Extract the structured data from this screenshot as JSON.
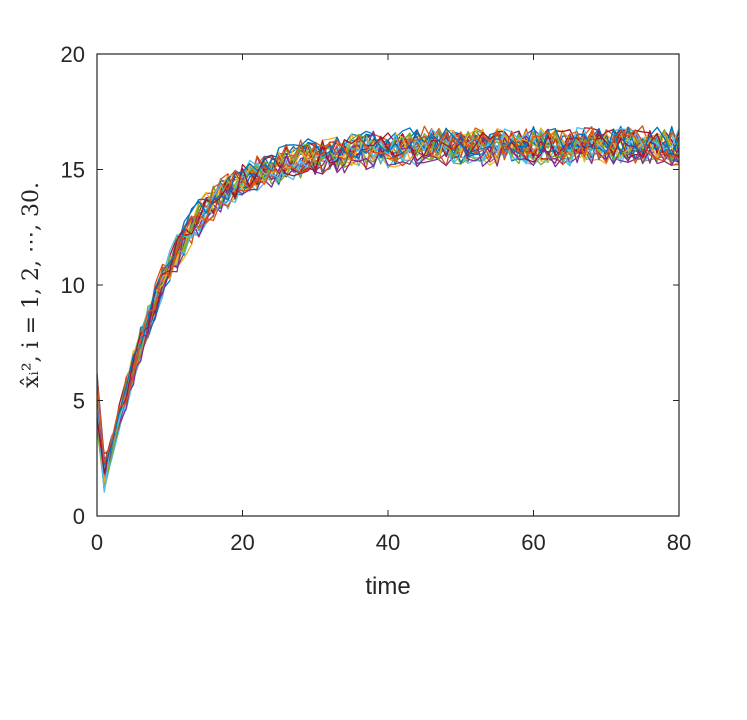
{
  "chart_data": {
    "type": "line",
    "title": "",
    "xlabel": "time",
    "ylabel": "x̂ᵢ², i = 1, 2, ⋯, 30.",
    "xlim": [
      0,
      80
    ],
    "ylim": [
      0,
      20
    ],
    "x_ticks": [
      "0",
      "20",
      "40",
      "60",
      "80"
    ],
    "y_ticks": [
      "0",
      "5",
      "10",
      "15",
      "20"
    ],
    "grid": false,
    "legend": "none",
    "series_count": 30,
    "series_style": "30 noisy trajectories, one per agent i = 1..30; each starts near 4–6 at time 0, dips to ~1–3 at time ~1, rises roughly exponentially and settles into fluctuation between ~14 and ~17.5 (mean ~16) from time ~35 to 80",
    "x": [
      0,
      1,
      2,
      3,
      4,
      5,
      6,
      7,
      8,
      9,
      10,
      11,
      12,
      13,
      14,
      15,
      16,
      17,
      18,
      19,
      20,
      21,
      22,
      23,
      24,
      25,
      26,
      27,
      28,
      29,
      30,
      31,
      32,
      33,
      34,
      35,
      36,
      37,
      38,
      39,
      40,
      41,
      42,
      43,
      44,
      45,
      46,
      47,
      48,
      49,
      50,
      51,
      52,
      53,
      54,
      55,
      56,
      57,
      58,
      59,
      60,
      61,
      62,
      63,
      64,
      65,
      66,
      67,
      68,
      69,
      70,
      71,
      72,
      73,
      74,
      75,
      76,
      77,
      78,
      79,
      80
    ],
    "mean_values": [
      5.0,
      1.9,
      2.9,
      4.1,
      5.3,
      6.5,
      7.5,
      8.4,
      9.3,
      10.1,
      10.8,
      11.4,
      12.0,
      12.5,
      12.9,
      13.3,
      13.6,
      13.9,
      14.1,
      14.3,
      14.5,
      14.7,
      14.8,
      14.9,
      15.0,
      15.1,
      15.2,
      15.3,
      15.4,
      15.5,
      15.5,
      15.6,
      15.6,
      15.7,
      15.7,
      15.8,
      15.8,
      15.8,
      15.9,
      15.9,
      15.9,
      15.9,
      15.9,
      16.0,
      16.0,
      16.0,
      16.0,
      16.0,
      16.0,
      16.0,
      16.0,
      16.0,
      16.0,
      16.0,
      16.0,
      16.0,
      16.0,
      16.0,
      16.0,
      16.0,
      16.0,
      16.0,
      16.0,
      16.0,
      16.0,
      16.0,
      16.0,
      16.0,
      16.0,
      16.0,
      16.0,
      16.0,
      16.0,
      16.0,
      16.0,
      16.0,
      16.0,
      16.0,
      16.0,
      16.0,
      16.0
    ],
    "noise_amplitude": 0.55,
    "colors": [
      "#0072BD",
      "#D95319",
      "#EDB120",
      "#7E2F8E",
      "#77AC30",
      "#4DBEEE",
      "#A2142F"
    ]
  }
}
